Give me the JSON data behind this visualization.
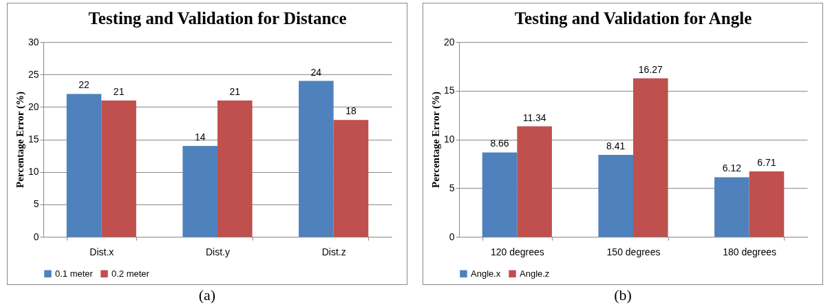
{
  "chart_data": [
    {
      "type": "bar",
      "title": "Testing and Validation  for Distance",
      "ylabel": "Percentage Error (%)",
      "categories": [
        "Dist.x",
        "Dist.y",
        "Dist.z"
      ],
      "series": [
        {
          "name": "0.1 meter",
          "color": "#4f81bd",
          "values": [
            22,
            14,
            24
          ]
        },
        {
          "name": "0.2 meter",
          "color": "#c0504d",
          "values": [
            21,
            21,
            18
          ]
        }
      ],
      "ylim": [
        0,
        30
      ],
      "yticks": [
        0,
        5,
        10,
        15,
        20,
        25,
        30
      ],
      "grid": "y",
      "legend": "bottom",
      "data_labels": true,
      "annotations": [
        "(a)"
      ]
    },
    {
      "type": "bar",
      "title": "Testing and Validation  for Angle",
      "ylabel": "Percentage Error (%)",
      "categories": [
        "120 degrees",
        "150 degrees",
        "180 degrees"
      ],
      "series": [
        {
          "name": "Angle.x",
          "color": "#4f81bd",
          "values": [
            8.66,
            8.41,
            6.12
          ]
        },
        {
          "name": "Angle.z",
          "color": "#c0504d",
          "values": [
            11.34,
            16.27,
            6.71
          ]
        }
      ],
      "ylim": [
        0,
        20
      ],
      "yticks": [
        0,
        5,
        10,
        15,
        20
      ],
      "grid": "y",
      "legend": "bottom",
      "data_labels": true,
      "annotations": [
        "(b)"
      ]
    }
  ]
}
